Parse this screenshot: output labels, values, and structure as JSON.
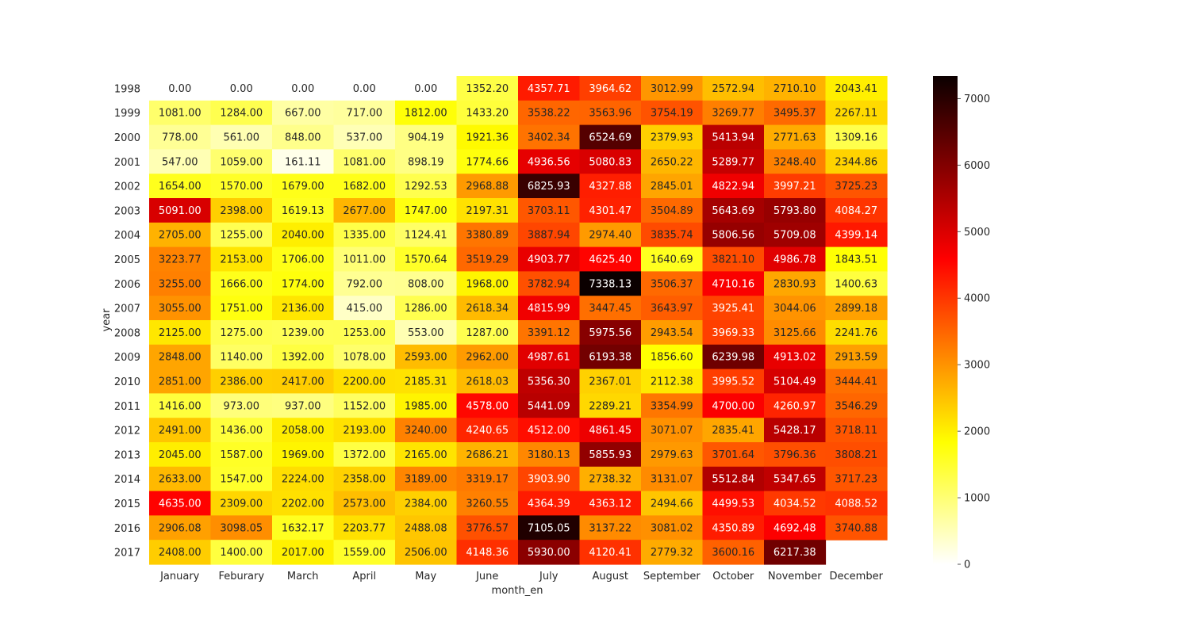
{
  "chart_data": {
    "type": "heatmap",
    "title": "",
    "xlabel": "month_en",
    "ylabel": "year",
    "colormap": "hot_r",
    "vmin": 0,
    "vmax": 7338.13,
    "colorbar_ticks": [
      "0",
      "1000",
      "2000",
      "3000",
      "4000",
      "5000",
      "6000",
      "7000"
    ],
    "x_categories": [
      "January",
      "Feburary",
      "March",
      "April",
      "May",
      "June",
      "July",
      "August",
      "September",
      "October",
      "November",
      "December"
    ],
    "y_categories": [
      "1998",
      "1999",
      "2000",
      "2001",
      "2002",
      "2003",
      "2004",
      "2005",
      "2006",
      "2007",
      "2008",
      "2009",
      "2010",
      "2011",
      "2012",
      "2013",
      "2014",
      "2015",
      "2016",
      "2017"
    ],
    "values": [
      [
        0.0,
        0.0,
        0.0,
        0.0,
        0.0,
        1352.2,
        4357.71,
        3964.62,
        3012.99,
        2572.94,
        2710.1,
        2043.41
      ],
      [
        1081.0,
        1284.0,
        667.0,
        717.0,
        1812.0,
        1433.2,
        3538.22,
        3563.96,
        3754.19,
        3269.77,
        3495.37,
        2267.11
      ],
      [
        778.0,
        561.0,
        848.0,
        537.0,
        904.19,
        1921.36,
        3402.34,
        6524.69,
        2379.93,
        5413.94,
        2771.63,
        1309.16
      ],
      [
        547.0,
        1059.0,
        161.11,
        1081.0,
        898.19,
        1774.66,
        4936.56,
        5080.83,
        2650.22,
        5289.77,
        3248.4,
        2344.86
      ],
      [
        1654.0,
        1570.0,
        1679.0,
        1682.0,
        1292.53,
        2968.88,
        6825.93,
        4327.88,
        2845.01,
        4822.94,
        3997.21,
        3725.23
      ],
      [
        5091.0,
        2398.0,
        1619.13,
        2677.0,
        1747.0,
        2197.31,
        3703.11,
        4301.47,
        3504.89,
        5643.69,
        5793.8,
        4084.27
      ],
      [
        2705.0,
        1255.0,
        2040.0,
        1335.0,
        1124.41,
        3380.89,
        3887.94,
        2974.4,
        3835.74,
        5806.56,
        5709.08,
        4399.14
      ],
      [
        3223.77,
        2153.0,
        1706.0,
        1011.0,
        1570.64,
        3519.29,
        4903.77,
        4625.4,
        1640.69,
        3821.1,
        4986.78,
        1843.51
      ],
      [
        3255.0,
        1666.0,
        1774.0,
        792.0,
        808.0,
        1968.0,
        3782.94,
        7338.13,
        3506.37,
        4710.16,
        2830.93,
        1400.63
      ],
      [
        3055.0,
        1751.0,
        2136.0,
        415.0,
        1286.0,
        2618.34,
        4815.99,
        3447.45,
        3643.97,
        3925.41,
        3044.06,
        2899.18
      ],
      [
        2125.0,
        1275.0,
        1239.0,
        1253.0,
        553.0,
        1287.0,
        3391.12,
        5975.56,
        2943.54,
        3969.33,
        3125.66,
        2241.76
      ],
      [
        2848.0,
        1140.0,
        1392.0,
        1078.0,
        2593.0,
        2962.0,
        4987.61,
        6193.38,
        1856.6,
        6239.98,
        4913.02,
        2913.59
      ],
      [
        2851.0,
        2386.0,
        2417.0,
        2200.0,
        2185.31,
        2618.03,
        5356.3,
        2367.01,
        2112.38,
        3995.52,
        5104.49,
        3444.41
      ],
      [
        1416.0,
        973.0,
        937.0,
        1152.0,
        1985.0,
        4578.0,
        5441.09,
        2289.21,
        3354.99,
        4700.0,
        4260.97,
        3546.29
      ],
      [
        2491.0,
        1436.0,
        2058.0,
        2193.0,
        3240.0,
        4240.65,
        4512.0,
        4861.45,
        3071.07,
        2835.41,
        5428.17,
        3718.11
      ],
      [
        2045.0,
        1587.0,
        1969.0,
        1372.0,
        2165.0,
        2686.21,
        3180.13,
        5855.93,
        2979.63,
        3701.64,
        3796.36,
        3808.21
      ],
      [
        2633.0,
        1547.0,
        2224.0,
        2358.0,
        3189.0,
        3319.17,
        3903.9,
        2738.32,
        3131.07,
        5512.84,
        5347.65,
        3717.23
      ],
      [
        4635.0,
        2309.0,
        2202.0,
        2573.0,
        2384.0,
        3260.55,
        4364.39,
        4363.12,
        2494.66,
        4499.53,
        4034.52,
        4088.52
      ],
      [
        2906.08,
        3098.05,
        1632.17,
        2203.77,
        2488.08,
        3776.57,
        7105.05,
        3137.22,
        3081.02,
        4350.89,
        4692.48,
        3740.88
      ],
      [
        2408.0,
        1400.0,
        2017.0,
        1559.0,
        2506.0,
        4148.36,
        5930.0,
        4120.41,
        2779.32,
        3600.16,
        6217.38,
        null
      ]
    ],
    "value_format": "2 decimals",
    "grid": false
  }
}
